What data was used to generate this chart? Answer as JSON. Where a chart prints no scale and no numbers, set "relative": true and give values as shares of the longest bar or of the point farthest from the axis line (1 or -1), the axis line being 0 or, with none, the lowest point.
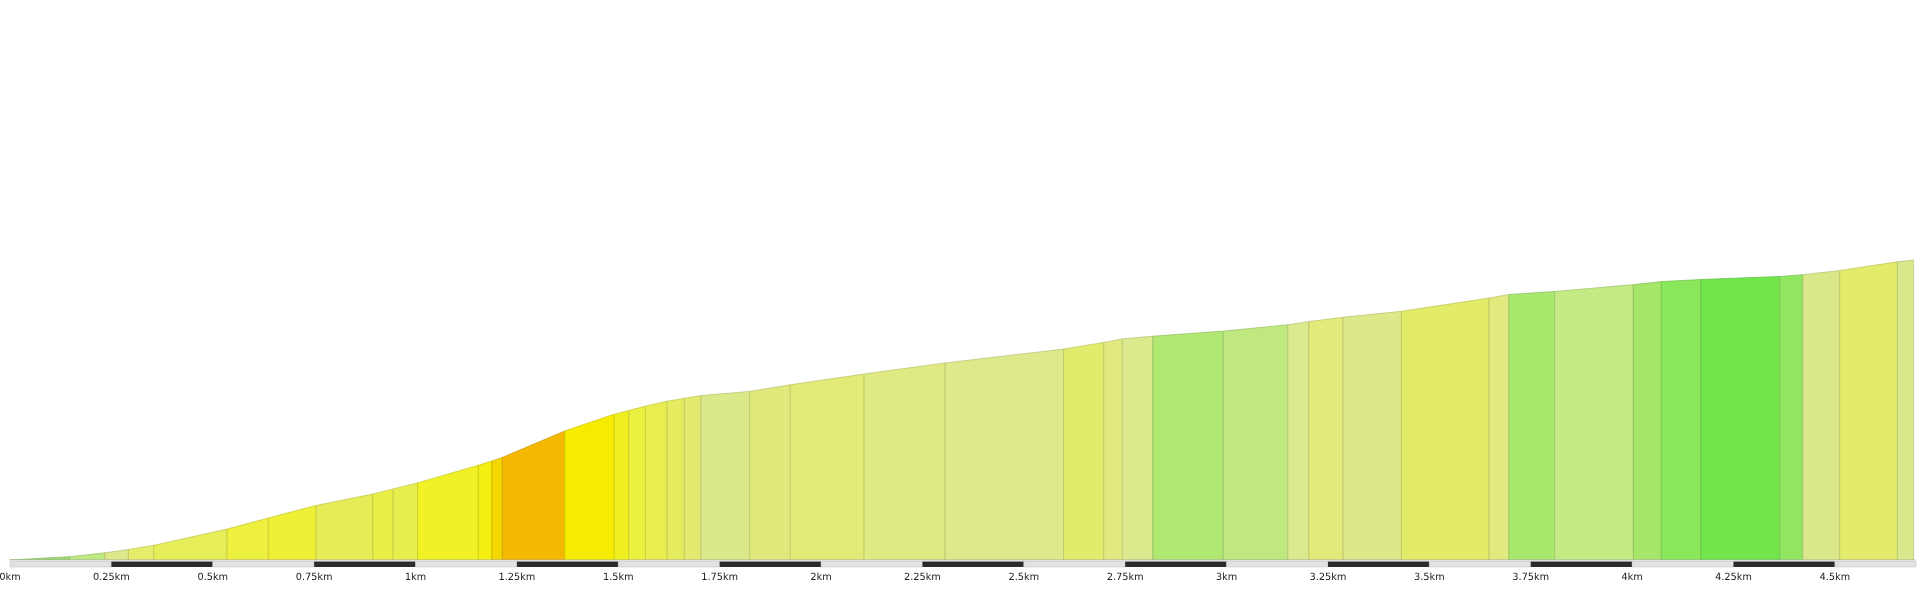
{
  "chart_data": {
    "type": "area",
    "relative": true,
    "tick_labels": "x",
    "series": [
      {
        "color": "#9ddc6a",
        "x": [
          0,
          0.147
        ],
        "values": [
          0,
          0.011
        ]
      },
      {
        "color": "#bde882",
        "x": [
          0.147,
          0.234
        ],
        "values": [
          0.011,
          0.024
        ]
      },
      {
        "color": "#dde88a",
        "x": [
          0.234,
          0.292
        ],
        "values": [
          0.024,
          0.035
        ]
      },
      {
        "color": "#e5ed6a",
        "x": [
          0.292,
          0.355
        ],
        "values": [
          0.035,
          0.049
        ]
      },
      {
        "color": "#e6ee5a",
        "x": [
          0.355,
          0.535
        ],
        "values": [
          0.049,
          0.103
        ]
      },
      {
        "color": "#eef040",
        "x": [
          0.535,
          0.637
        ],
        "values": [
          0.103,
          0.14
        ]
      },
      {
        "color": "#eef036",
        "x": [
          0.637,
          0.755
        ],
        "values": [
          0.14,
          0.182
        ]
      },
      {
        "color": "#e6ec58",
        "x": [
          0.755,
          0.895
        ],
        "values": [
          0.182,
          0.22
        ]
      },
      {
        "color": "#eaef48",
        "x": [
          0.895,
          0.945
        ],
        "values": [
          0.22,
          0.237
        ]
      },
      {
        "color": "#e8ee4e",
        "x": [
          0.945,
          1.005
        ],
        "values": [
          0.237,
          0.257
        ]
      },
      {
        "color": "#f0f225",
        "x": [
          1.005,
          1.155
        ],
        "values": [
          0.257,
          0.316
        ]
      },
      {
        "color": "#f4ef10",
        "x": [
          1.155,
          1.188
        ],
        "values": [
          0.316,
          0.33
        ]
      },
      {
        "color": "#f4d600",
        "x": [
          1.188,
          1.214
        ],
        "values": [
          0.33,
          0.342
        ]
      },
      {
        "color": "#f4b800",
        "x": [
          1.214,
          1.368
        ],
        "values": [
          0.342,
          0.43
        ]
      },
      {
        "color": "#f5ec00",
        "x": [
          1.368,
          1.49
        ],
        "values": [
          0.43,
          0.486
        ]
      },
      {
        "color": "#f0f020",
        "x": [
          1.49,
          1.526
        ],
        "values": [
          0.486,
          0.498
        ]
      },
      {
        "color": "#ecf040",
        "x": [
          1.526,
          1.567
        ],
        "values": [
          0.498,
          0.513
        ]
      },
      {
        "color": "#eaee50",
        "x": [
          1.567,
          1.62
        ],
        "values": [
          0.513,
          0.529
        ]
      },
      {
        "color": "#e6ec60",
        "x": [
          1.62,
          1.663
        ],
        "values": [
          0.529,
          0.539
        ]
      },
      {
        "color": "#e4ea70",
        "x": [
          1.663,
          1.704
        ],
        "values": [
          0.539,
          0.548
        ]
      },
      {
        "color": "#dce98a",
        "x": [
          1.704,
          1.824
        ],
        "values": [
          0.548,
          0.562
        ]
      },
      {
        "color": "#e0ea7c",
        "x": [
          1.824,
          1.924
        ],
        "values": [
          0.562,
          0.584
        ]
      },
      {
        "color": "#e2ea78",
        "x": [
          1.924,
          2.106
        ],
        "values": [
          0.584,
          0.62
        ]
      },
      {
        "color": "#dfea82",
        "x": [
          2.106,
          2.306
        ],
        "values": [
          0.62,
          0.657
        ]
      },
      {
        "color": "#dde98a",
        "x": [
          2.306,
          2.598
        ],
        "values": [
          0.657,
          0.703
        ]
      },
      {
        "color": "#e2ec6c",
        "x": [
          2.598,
          2.697
        ],
        "values": [
          0.703,
          0.725
        ]
      },
      {
        "color": "#e0ea80",
        "x": [
          2.697,
          2.743
        ],
        "values": [
          0.725,
          0.737
        ]
      },
      {
        "color": "#dce98c",
        "x": [
          2.743,
          2.818
        ],
        "values": [
          0.737,
          0.746
        ]
      },
      {
        "color": "#b0e872",
        "x": [
          2.818,
          2.992
        ],
        "values": [
          0.746,
          0.763
        ]
      },
      {
        "color": "#bfe87e",
        "x": [
          2.992,
          3.151
        ],
        "values": [
          0.763,
          0.784
        ]
      },
      {
        "color": "#dce98e",
        "x": [
          3.151,
          3.203
        ],
        "values": [
          0.784,
          0.795
        ]
      },
      {
        "color": "#e1eb7a",
        "x": [
          3.203,
          3.287
        ],
        "values": [
          0.795,
          0.809
        ]
      },
      {
        "color": "#dde988",
        "x": [
          3.287,
          3.431
        ],
        "values": [
          0.809,
          0.829
        ]
      },
      {
        "color": "#e3ec68",
        "x": [
          3.431,
          3.647
        ],
        "values": [
          0.829,
          0.873
        ]
      },
      {
        "color": "#e0ea7e",
        "x": [
          3.647,
          3.696
        ],
        "values": [
          0.873,
          0.885
        ]
      },
      {
        "color": "#a8e86c",
        "x": [
          3.696,
          3.809
        ],
        "values": [
          0.885,
          0.895
        ]
      },
      {
        "color": "#c4ea84",
        "x": [
          3.809,
          4.003
        ],
        "values": [
          0.895,
          0.918
        ]
      },
      {
        "color": "#a6e66a",
        "x": [
          4.003,
          4.072
        ],
        "values": [
          0.918,
          0.928
        ]
      },
      {
        "color": "#8ae65a",
        "x": [
          4.072,
          4.17
        ],
        "values": [
          0.928,
          0.935
        ]
      },
      {
        "color": "#70e64a",
        "x": [
          4.17,
          4.364
        ],
        "values": [
          0.935,
          0.945
        ]
      },
      {
        "color": "#90e660",
        "x": [
          4.364,
          4.421
        ],
        "values": [
          0.945,
          0.951
        ]
      },
      {
        "color": "#dbe88a",
        "x": [
          4.421,
          4.512
        ],
        "values": [
          0.951,
          0.965
        ]
      },
      {
        "color": "#e2ec6a",
        "x": [
          4.512,
          4.654
        ],
        "values": [
          0.965,
          0.994
        ]
      },
      {
        "color": "#dae88c",
        "x": [
          4.654,
          4.694
        ],
        "values": [
          0.994,
          1
        ]
      }
    ],
    "xlim": [
      0,
      4.7
    ],
    "xticks": [
      {
        "value": 0,
        "label": "0km"
      },
      {
        "value": 0.25,
        "label": "0.25km"
      },
      {
        "value": 0.5,
        "label": "0.5km"
      },
      {
        "value": 0.75,
        "label": "0.75km"
      },
      {
        "value": 1,
        "label": "1km"
      },
      {
        "value": 1.25,
        "label": "1.25km"
      },
      {
        "value": 1.5,
        "label": "1.5km"
      },
      {
        "value": 1.75,
        "label": "1.75km"
      },
      {
        "value": 2,
        "label": "2km"
      },
      {
        "value": 2.25,
        "label": "2.25km"
      },
      {
        "value": 2.5,
        "label": "2.5km"
      },
      {
        "value": 2.75,
        "label": "2.75km"
      },
      {
        "value": 3,
        "label": "3km"
      },
      {
        "value": 3.25,
        "label": "3.25km"
      },
      {
        "value": 3.5,
        "label": "3.5km"
      },
      {
        "value": 3.75,
        "label": "3.75km"
      },
      {
        "value": 4,
        "label": "4km"
      },
      {
        "value": 4.25,
        "label": "4.25km"
      },
      {
        "value": 4.5,
        "label": "4.5km"
      }
    ]
  }
}
